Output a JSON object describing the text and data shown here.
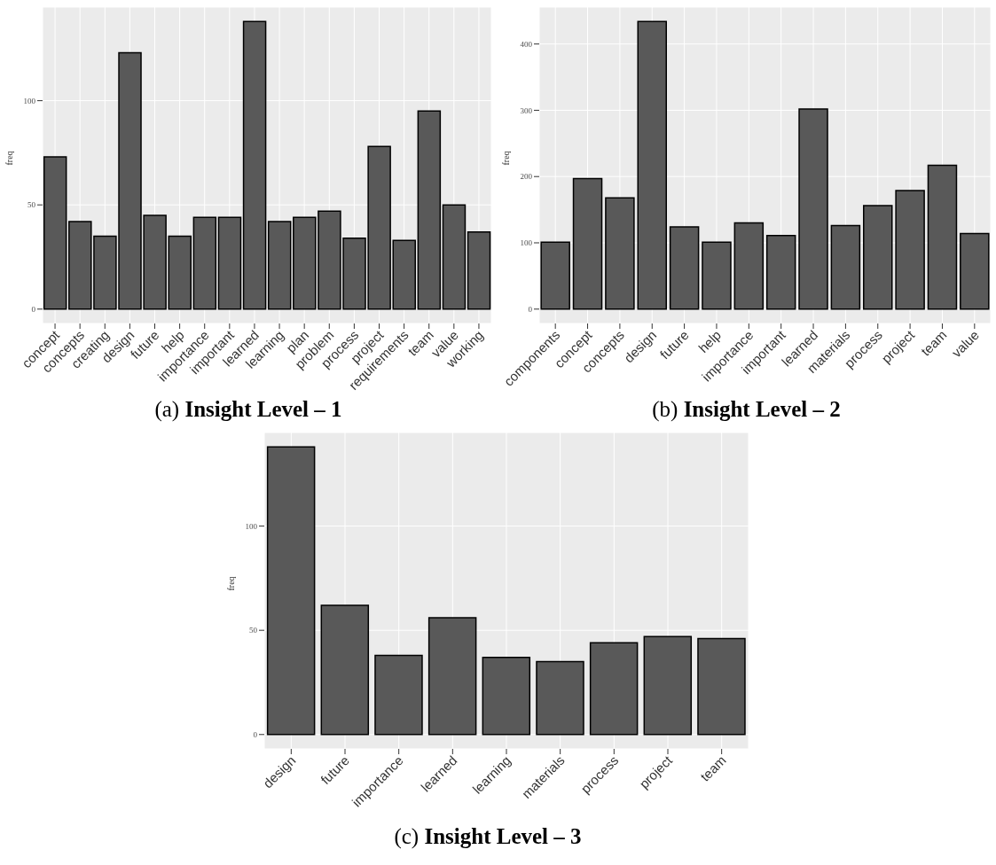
{
  "chart_data": [
    {
      "type": "bar",
      "title": "(a) Insight Level – 1",
      "ylabel": "freq",
      "categories": [
        "concept",
        "concepts",
        "creating",
        "design",
        "future",
        "help",
        "importance",
        "important",
        "learned",
        "learning",
        "plan",
        "problem",
        "process",
        "project",
        "requirements",
        "team",
        "value",
        "working"
      ],
      "values": [
        73,
        42,
        35,
        123,
        45,
        35,
        44,
        44,
        138,
        42,
        44,
        47,
        34,
        78,
        33,
        95,
        50,
        37
      ],
      "color": "#595959",
      "ylim": [
        -6.9,
        144.9
      ],
      "yticks": [
        0,
        50,
        100
      ],
      "grid": true
    },
    {
      "type": "bar",
      "title": "(b) Insight Level – 2",
      "ylabel": "freq",
      "categories": [
        "components",
        "concept",
        "concepts",
        "design",
        "future",
        "help",
        "importance",
        "important",
        "learned",
        "materials",
        "process",
        "project",
        "team",
        "value"
      ],
      "values": [
        101,
        197,
        168,
        434,
        124,
        101,
        130,
        111,
        302,
        126,
        156,
        179,
        217,
        114
      ],
      "color": "#595959",
      "ylim": [
        -21.7,
        455.7
      ],
      "yticks": [
        0,
        100,
        200,
        300,
        400
      ],
      "grid": true
    },
    {
      "type": "bar",
      "title": "(c) Insight Level – 3",
      "ylabel": "freq",
      "categories": [
        "design",
        "future",
        "importance",
        "learned",
        "learning",
        "materials",
        "process",
        "project",
        "team"
      ],
      "values": [
        138,
        62,
        38,
        56,
        37,
        35,
        44,
        47,
        46
      ],
      "color": "#595959",
      "ylim": [
        -6.9,
        144.9
      ],
      "yticks": [
        0,
        50,
        100
      ],
      "grid": true
    }
  ]
}
